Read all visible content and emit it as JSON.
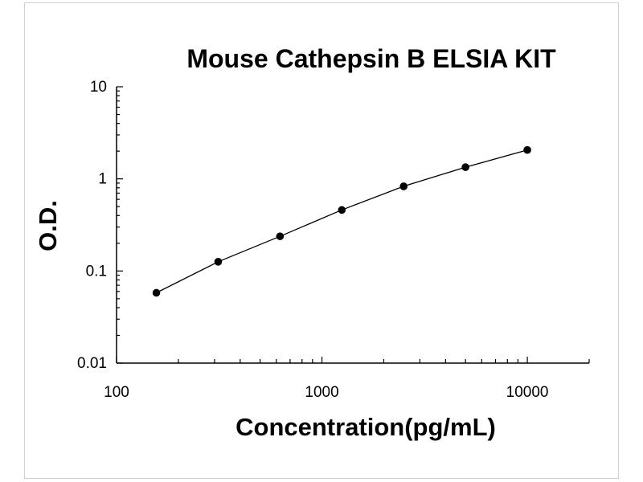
{
  "chart_data": {
    "type": "scatter",
    "title": "Mouse Cathepsin B ELSIA KIT",
    "xlabel": "Concentration(pg/mL)",
    "ylabel": "O.D.",
    "x_scale": "log",
    "y_scale": "log",
    "xlim": [
      100,
      20000
    ],
    "ylim": [
      0.01,
      10
    ],
    "x_ticks": [
      {
        "value": 100,
        "label": "100"
      },
      {
        "value": 1000,
        "label": "1000"
      },
      {
        "value": 10000,
        "label": "10000"
      }
    ],
    "y_ticks": [
      {
        "value": 0.01,
        "label": "0.01"
      },
      {
        "value": 0.1,
        "label": "0.1"
      },
      {
        "value": 1,
        "label": "1"
      },
      {
        "value": 10,
        "label": "10"
      }
    ],
    "grid": false,
    "legend": "none",
    "series": [
      {
        "x": [
          156.25,
          312.5,
          625,
          1250,
          2500,
          5000,
          10000
        ],
        "y": [
          0.058,
          0.126,
          0.238,
          0.46,
          0.83,
          1.34,
          2.06
        ],
        "marker": "circle",
        "trendline": true
      }
    ]
  }
}
